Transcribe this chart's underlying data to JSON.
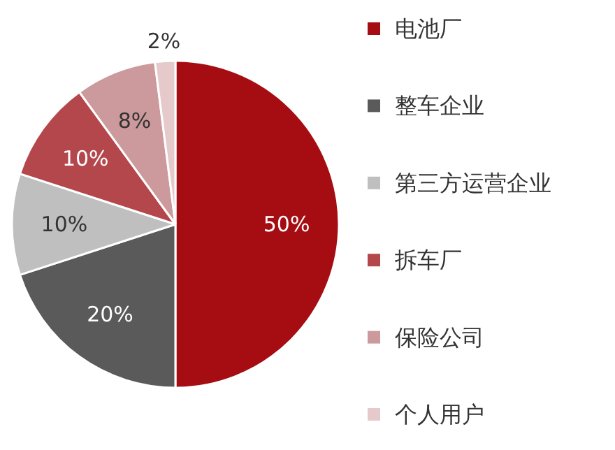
{
  "chart_data": {
    "type": "pie",
    "categories": [
      "电池厂",
      "整车企业",
      "第三方运营企业",
      "拆车厂",
      "保险公司",
      "个人用户"
    ],
    "values": [
      50,
      20,
      10,
      10,
      8,
      2
    ],
    "colors": [
      "#a50d12",
      "#5a5a5a",
      "#bfbfbf",
      "#b3474c",
      "#cc9a9c",
      "#e6c9cb"
    ],
    "value_labels": [
      "50%",
      "20%",
      "10%",
      "10%",
      "8%",
      "2%"
    ],
    "legend": "right"
  }
}
